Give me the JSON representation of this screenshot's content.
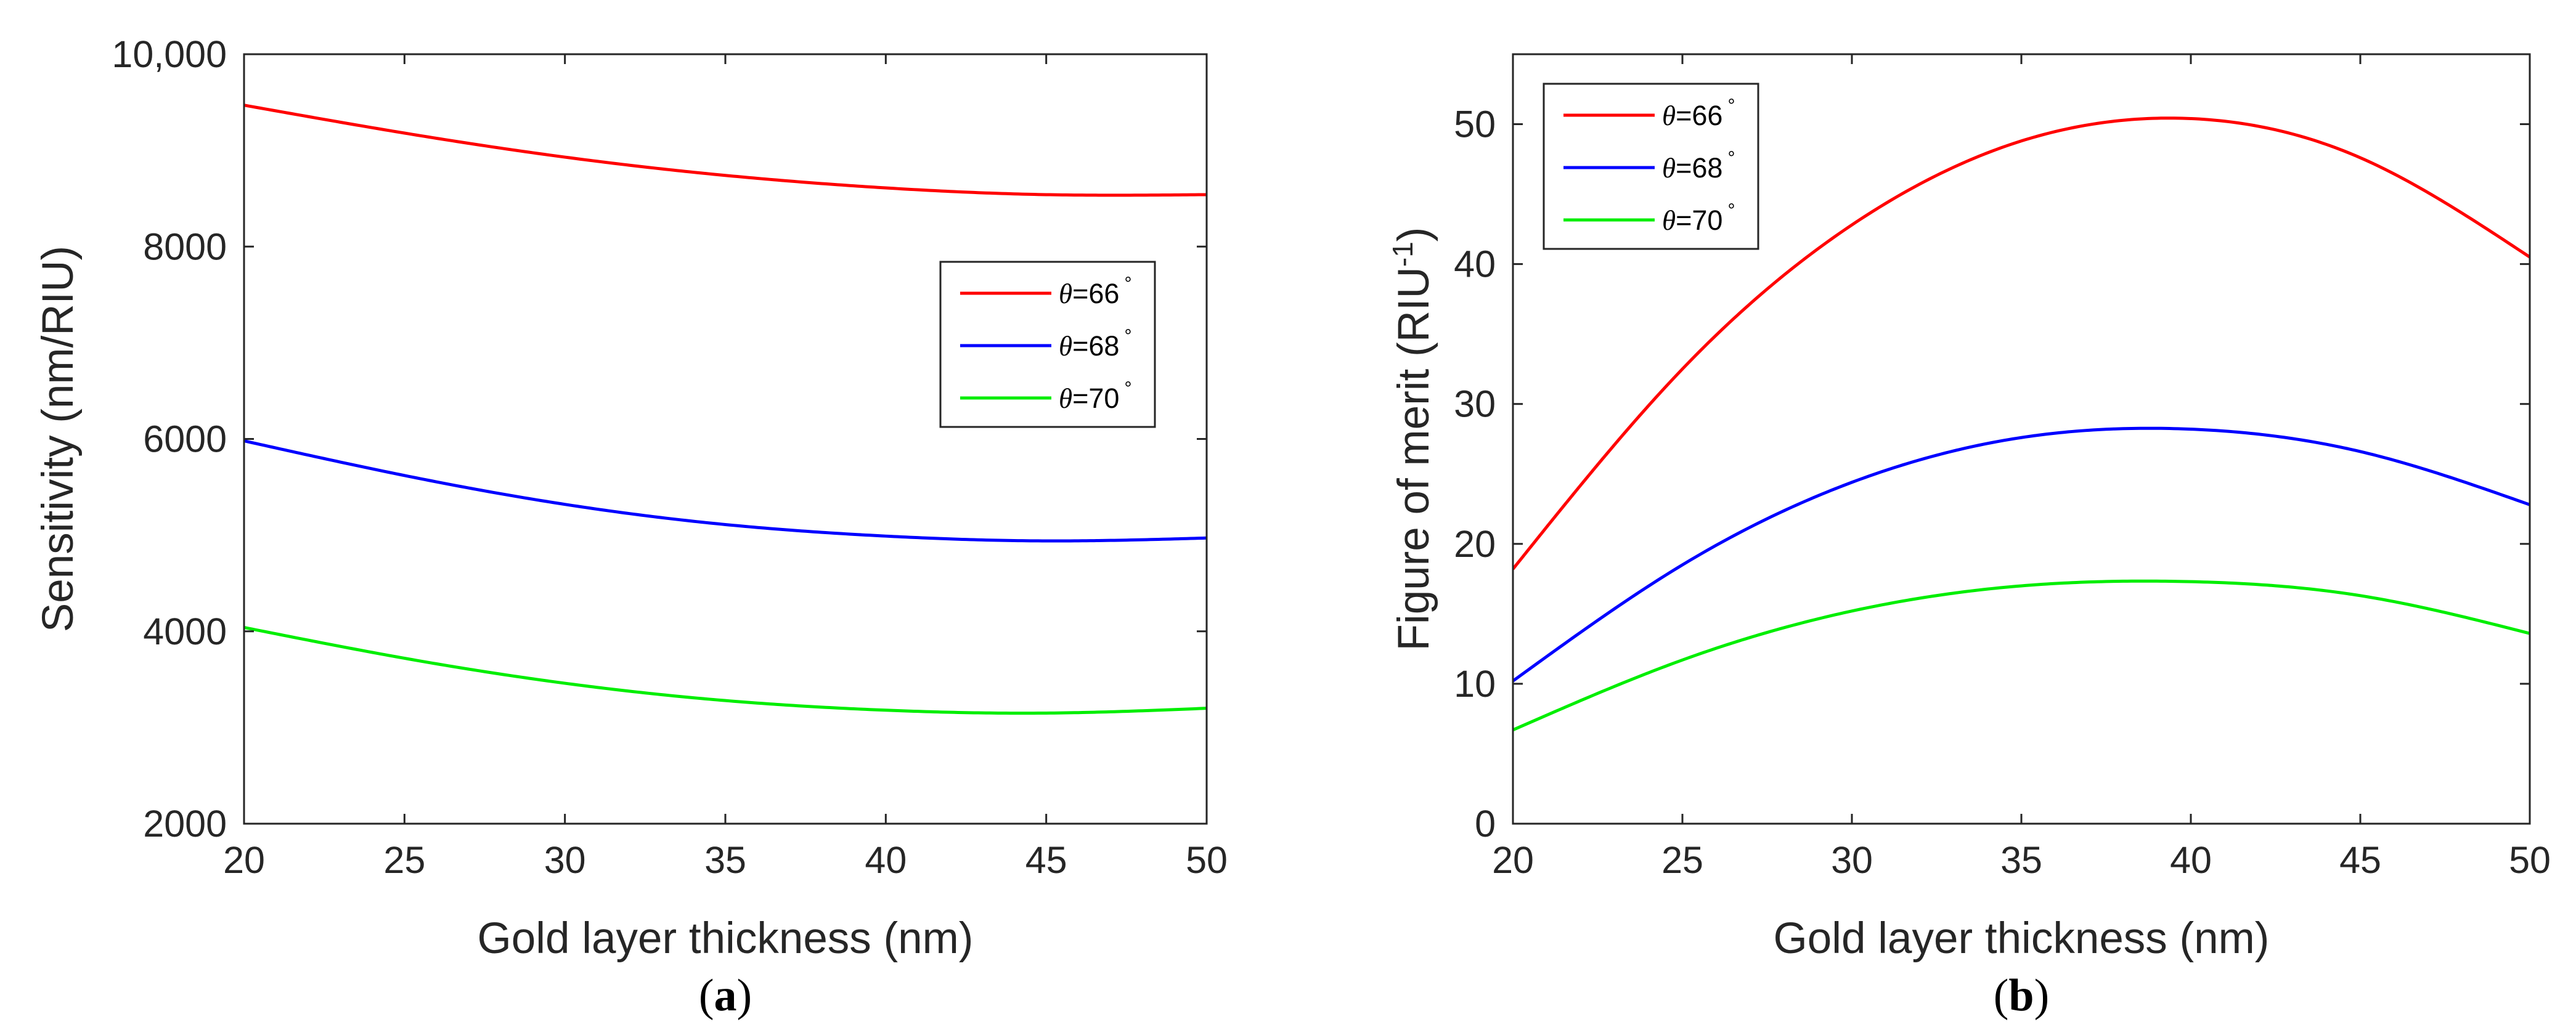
{
  "chart_data": [
    {
      "id": "a",
      "type": "line",
      "panel_label": "a",
      "xlabel": "Gold layer thickness (nm)",
      "ylabel": "Sensitivity (nm/RIU)",
      "xlim": [
        20,
        50
      ],
      "ylim": [
        2000,
        10000
      ],
      "xticks": [
        20,
        25,
        30,
        35,
        40,
        45,
        50
      ],
      "xtick_labels": [
        "20",
        "25",
        "30",
        "35",
        "40",
        "45",
        "50"
      ],
      "yticks": [
        2000,
        4000,
        6000,
        8000,
        10000
      ],
      "ytick_labels": [
        "2000",
        "4000",
        "6000",
        "8000",
        "10,000"
      ],
      "grid": false,
      "legend_position": "center-right",
      "x": [
        20,
        25,
        30,
        35,
        40,
        45,
        50
      ],
      "series": [
        {
          "name_symbol": "θ",
          "name_rest": "=66",
          "name_degree": "°",
          "color": "#ff0000",
          "values": [
            9470,
            9180,
            8930,
            8740,
            8610,
            8540,
            8540
          ]
        },
        {
          "name_symbol": "θ",
          "name_rest": "=68",
          "name_degree": "°",
          "color": "#0000ff",
          "values": [
            5980,
            5620,
            5320,
            5110,
            4990,
            4940,
            4970
          ]
        },
        {
          "name_symbol": "θ",
          "name_rest": "=70",
          "name_degree": "°",
          "color": "#00ee00",
          "values": [
            4040,
            3720,
            3460,
            3280,
            3180,
            3150,
            3200
          ]
        }
      ]
    },
    {
      "id": "b",
      "type": "line",
      "panel_label": "b",
      "xlabel": "Gold layer thickness (nm)",
      "ylabel_main": "Figure of merit (RIU",
      "ylabel_sup": "-1",
      "ylabel_end": ")",
      "xlim": [
        20,
        50
      ],
      "ylim": [
        0,
        55
      ],
      "xticks": [
        20,
        25,
        30,
        35,
        40,
        45,
        50
      ],
      "xtick_labels": [
        "20",
        "25",
        "30",
        "35",
        "40",
        "45",
        "50"
      ],
      "yticks": [
        0,
        10,
        20,
        30,
        40,
        50
      ],
      "ytick_labels": [
        "0",
        "10",
        "20",
        "30",
        "40",
        "50"
      ],
      "grid": false,
      "legend_position": "top-left",
      "x": [
        20,
        25,
        30,
        35,
        40,
        45,
        50
      ],
      "series": [
        {
          "name_symbol": "θ",
          "name_rest": "=66",
          "name_degree": "°",
          "color": "#ff0000",
          "values": [
            18.2,
            32.5,
            42.8,
            48.8,
            50.4,
            47.6,
            40.5
          ]
        },
        {
          "name_symbol": "θ",
          "name_rest": "=68",
          "name_degree": "°",
          "color": "#0000ff",
          "values": [
            10.2,
            18.5,
            24.4,
            27.6,
            28.2,
            26.6,
            22.8
          ]
        },
        {
          "name_symbol": "θ",
          "name_rest": "=70",
          "name_degree": "°",
          "color": "#00ee00",
          "values": [
            6.7,
            11.7,
            15.2,
            17.0,
            17.3,
            16.3,
            13.6
          ]
        }
      ]
    }
  ]
}
